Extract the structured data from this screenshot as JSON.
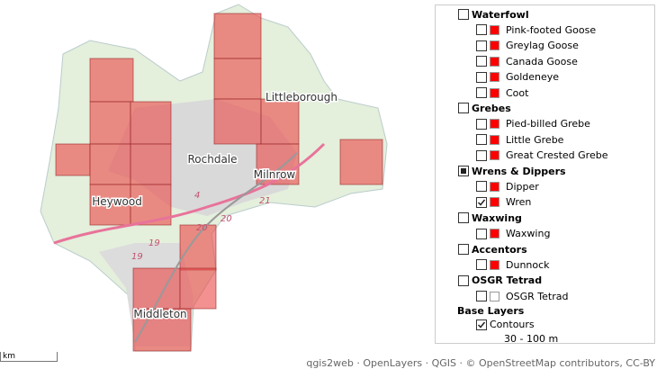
{
  "map": {
    "places": [
      "Littleborough",
      "Rochdale",
      "Milnrow",
      "Heywood",
      "Middleton"
    ],
    "road_labels": [
      "4",
      "21",
      "20",
      "20",
      "19",
      "19"
    ],
    "scale_label": "km"
  },
  "layers": {
    "groups": [
      {
        "name": "Waterfowl",
        "state": "unchecked",
        "items": [
          {
            "name": "Pink-footed Goose",
            "checked": false,
            "swatch": "#ff0000"
          },
          {
            "name": "Greylag Goose",
            "checked": false,
            "swatch": "#ff0000"
          },
          {
            "name": "Canada Goose",
            "checked": false,
            "swatch": "#ff0000"
          },
          {
            "name": "Goldeneye",
            "checked": false,
            "swatch": "#ff0000"
          },
          {
            "name": "Coot",
            "checked": false,
            "swatch": "#ff0000"
          }
        ]
      },
      {
        "name": "Grebes",
        "state": "unchecked",
        "items": [
          {
            "name": "Pied-billed Grebe",
            "checked": false,
            "swatch": "#ff0000"
          },
          {
            "name": "Little Grebe",
            "checked": false,
            "swatch": "#ff0000"
          },
          {
            "name": "Great Crested Grebe",
            "checked": false,
            "swatch": "#ff0000"
          }
        ]
      },
      {
        "name": "Wrens & Dippers",
        "state": "partial",
        "items": [
          {
            "name": "Dipper",
            "checked": false,
            "swatch": "#ff0000"
          },
          {
            "name": "Wren",
            "checked": true,
            "swatch": "#ff0000"
          }
        ]
      },
      {
        "name": "Waxwing",
        "state": "unchecked",
        "items": [
          {
            "name": "Waxwing",
            "checked": false,
            "swatch": "#ff0000"
          }
        ]
      },
      {
        "name": "Accentors",
        "state": "unchecked",
        "items": [
          {
            "name": "Dunnock",
            "checked": false,
            "swatch": "#ff0000"
          }
        ]
      },
      {
        "name": "OSGR Tetrad",
        "state": "unchecked",
        "items": [
          {
            "name": "OSGR Tetrad",
            "checked": false,
            "swatch": "#ffffff"
          }
        ]
      }
    ],
    "base_layers": {
      "title": "Base Layers",
      "items": [
        {
          "name": "Contours",
          "checked": true,
          "legend": "30 - 100 m"
        }
      ]
    }
  },
  "attribution": "qgis2web · OpenLayers · QGIS · © OpenStreetMap contributors, CC-BY"
}
